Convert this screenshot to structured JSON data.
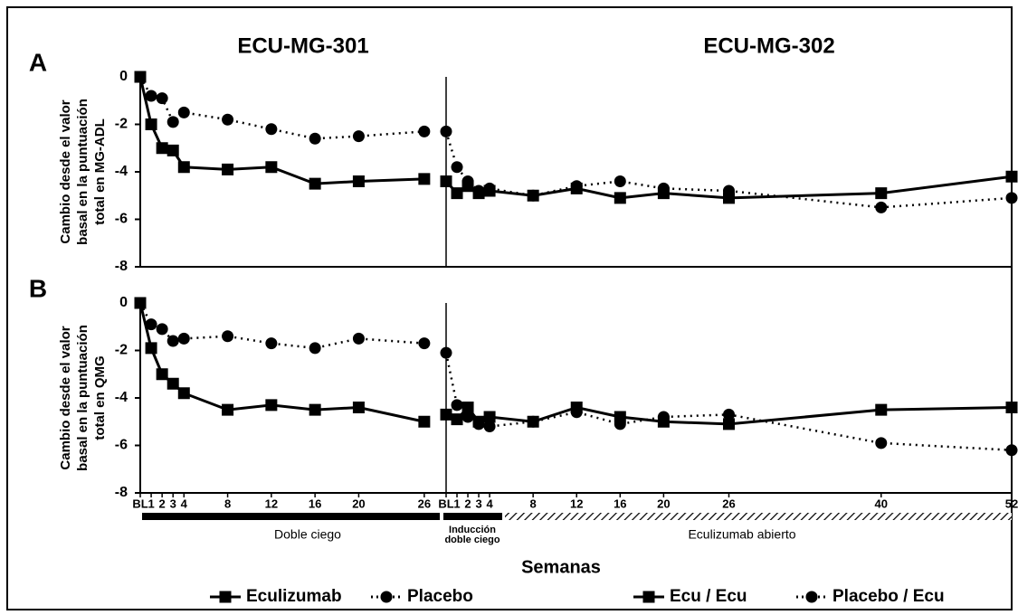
{
  "chart_data": {
    "type": "line",
    "segments": [
      {
        "title": "ECU-MG-301",
        "xlim": [
          0,
          28
        ],
        "xticks": [
          {
            "value": 0,
            "label": "BL"
          },
          1,
          2,
          3,
          4,
          8,
          12,
          16,
          20,
          26
        ]
      },
      {
        "title": "ECU-MG-302",
        "xlim": [
          0,
          52
        ],
        "xticks": [
          {
            "value": 0,
            "label": "BL"
          },
          1,
          2,
          3,
          4,
          8,
          12,
          16,
          20,
          26,
          40,
          52
        ]
      }
    ],
    "series": [
      {
        "name": "Eculizumab",
        "color": "#000000",
        "marker": "square",
        "dashed": false,
        "segment": 0,
        "x": [
          0,
          1,
          2,
          3,
          4,
          8,
          12,
          16,
          20,
          26
        ]
      },
      {
        "name": "Placebo",
        "color": "#000000",
        "marker": "circle",
        "dashed": true,
        "segment": 0,
        "x": [
          0,
          1,
          2,
          3,
          4,
          8,
          12,
          16,
          20,
          26
        ]
      },
      {
        "name": "Ecu / Ecu",
        "color": "#000000",
        "marker": "square",
        "dashed": false,
        "segment": 1,
        "x": [
          0,
          1,
          2,
          3,
          4,
          8,
          12,
          16,
          20,
          26,
          40,
          52
        ]
      },
      {
        "name": "Placebo / Ecu",
        "color": "#000000",
        "marker": "circle",
        "dashed": true,
        "segment": 1,
        "x": [
          0,
          1,
          2,
          3,
          4,
          8,
          12,
          16,
          20,
          26,
          40,
          52
        ]
      }
    ],
    "panels": [
      {
        "label": "A",
        "ylabel": [
          "Cambio desde el valor",
          "basal en la puntuación",
          "total en MG-ADL"
        ],
        "ylim": [
          -8,
          0
        ],
        "yticks": [
          0,
          -2,
          -4,
          -6,
          -8
        ],
        "values": [
          [
            0,
            -2.0,
            -3.0,
            -3.1,
            -3.8,
            -3.9,
            -3.8,
            -4.5,
            -4.4,
            -4.3
          ],
          [
            0,
            -0.8,
            -0.9,
            -1.9,
            -1.5,
            -1.8,
            -2.2,
            -2.6,
            -2.5,
            -2.3
          ],
          [
            -4.4,
            -4.9,
            -4.6,
            -4.9,
            -4.8,
            -5.0,
            -4.7,
            -5.1,
            -4.9,
            -5.1,
            -4.9,
            -4.2
          ],
          [
            -2.3,
            -3.8,
            -4.4,
            -4.8,
            -4.7,
            -5.0,
            -4.6,
            -4.4,
            -4.7,
            -4.8,
            -5.5,
            -5.1
          ]
        ]
      },
      {
        "label": "B",
        "ylabel": [
          "Cambio desde el valor",
          "basal en la puntuación",
          "total en QMG"
        ],
        "ylim": [
          -8,
          0
        ],
        "yticks": [
          0,
          -2,
          -4,
          -6,
          -8
        ],
        "values": [
          [
            0,
            -1.9,
            -3.0,
            -3.4,
            -3.8,
            -4.5,
            -4.3,
            -4.5,
            -4.4,
            -5.0
          ],
          [
            0,
            -0.9,
            -1.1,
            -1.6,
            -1.5,
            -1.4,
            -1.7,
            -1.9,
            -1.5,
            -1.7
          ],
          [
            -4.7,
            -4.9,
            -4.4,
            -5.0,
            -4.8,
            -5.0,
            -4.4,
            -4.8,
            -5.0,
            -5.1,
            -4.5,
            -4.4
          ],
          [
            -2.1,
            -4.3,
            -4.8,
            -5.1,
            -5.2,
            -5.0,
            -4.6,
            -5.1,
            -4.8,
            -4.7,
            -5.9,
            -6.2
          ]
        ]
      }
    ],
    "phases": [
      [
        "Doble ciego"
      ],
      [
        "Inducción",
        "doble ciego"
      ],
      [
        "Eculizumab  abierto"
      ]
    ],
    "xlabel": "Semanas"
  }
}
